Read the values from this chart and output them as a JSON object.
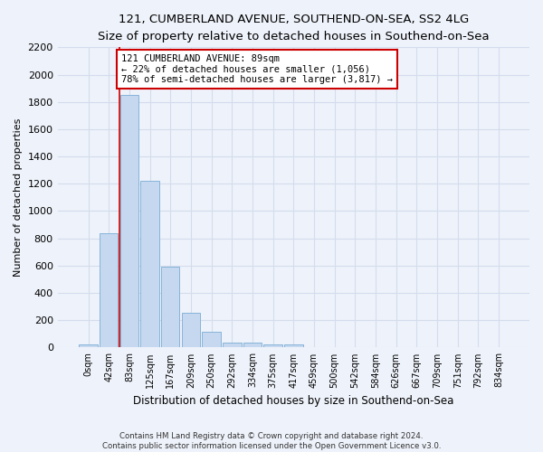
{
  "title": "121, CUMBERLAND AVENUE, SOUTHEND-ON-SEA, SS2 4LG",
  "subtitle": "Size of property relative to detached houses in Southend-on-Sea",
  "xlabel": "Distribution of detached houses by size in Southend-on-Sea",
  "ylabel": "Number of detached properties",
  "footer_line1": "Contains HM Land Registry data © Crown copyright and database right 2024.",
  "footer_line2": "Contains public sector information licensed under the Open Government Licence v3.0.",
  "bar_labels": [
    "0sqm",
    "42sqm",
    "83sqm",
    "125sqm",
    "167sqm",
    "209sqm",
    "250sqm",
    "292sqm",
    "334sqm",
    "375sqm",
    "417sqm",
    "459sqm",
    "500sqm",
    "542sqm",
    "584sqm",
    "626sqm",
    "667sqm",
    "709sqm",
    "751sqm",
    "792sqm",
    "834sqm"
  ],
  "bar_heights": [
    20,
    840,
    1850,
    1220,
    590,
    255,
    115,
    38,
    35,
    25,
    20,
    0,
    0,
    0,
    0,
    0,
    0,
    0,
    0,
    0,
    0
  ],
  "bar_color": "#c5d8f0",
  "bar_edge_color": "#7aadd4",
  "grid_color": "#d4dded",
  "annotation_text": "121 CUMBERLAND AVENUE: 89sqm\n← 22% of detached houses are smaller (1,056)\n78% of semi-detached houses are larger (3,817) →",
  "annotation_box_color": "#ffffff",
  "annotation_box_edge_color": "#cc0000",
  "vline_color": "#cc0000",
  "ylim": [
    0,
    2200
  ],
  "yticks": [
    0,
    200,
    400,
    600,
    800,
    1000,
    1200,
    1400,
    1600,
    1800,
    2000,
    2200
  ],
  "background_color": "#eef2fa",
  "plot_background_color": "#eef2fa",
  "title_fontsize": 9.5,
  "subtitle_fontsize": 8.5
}
